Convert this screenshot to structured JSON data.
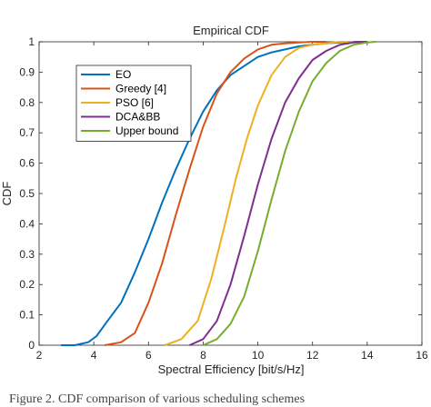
{
  "chart_data": {
    "type": "line",
    "title": "Empirical CDF",
    "xlabel": "Spectral Efficiency [bit/s/Hz]",
    "ylabel": "CDF",
    "xlim": [
      2,
      16
    ],
    "ylim": [
      0,
      1
    ],
    "xticks": [
      2,
      4,
      6,
      8,
      10,
      12,
      14,
      16
    ],
    "yticks": [
      0,
      0.1,
      0.2,
      0.3,
      0.4,
      0.5,
      0.6,
      0.7,
      0.8,
      0.9,
      1
    ],
    "grid": false,
    "legend_position": "top-left",
    "series": [
      {
        "name": "EO",
        "color": "#0072BD",
        "x": [
          2.8,
          3.3,
          3.8,
          4.1,
          4.5,
          5.0,
          5.5,
          6.0,
          6.5,
          7.0,
          7.5,
          8.0,
          8.5,
          9.0,
          9.5,
          10.0,
          10.5,
          11.0,
          11.5,
          12.0,
          12.5,
          13.0,
          13.5,
          14.0
        ],
        "y": [
          0.0,
          0.0,
          0.01,
          0.03,
          0.08,
          0.14,
          0.24,
          0.35,
          0.47,
          0.58,
          0.68,
          0.77,
          0.84,
          0.89,
          0.92,
          0.95,
          0.965,
          0.975,
          0.985,
          0.99,
          0.995,
          0.998,
          1.0,
          1.0
        ]
      },
      {
        "name": "Greedy [4]",
        "color": "#D95319",
        "x": [
          4.4,
          5.0,
          5.5,
          6.0,
          6.5,
          7.0,
          7.5,
          8.0,
          8.5,
          9.0,
          9.5,
          10.0,
          10.5,
          11.0,
          11.5,
          12.0,
          12.5
        ],
        "y": [
          0.0,
          0.01,
          0.04,
          0.14,
          0.27,
          0.43,
          0.58,
          0.72,
          0.83,
          0.9,
          0.945,
          0.975,
          0.99,
          0.995,
          0.998,
          1.0,
          1.0
        ]
      },
      {
        "name": "PSO [6]",
        "color": "#EDB120",
        "x": [
          6.6,
          7.2,
          7.8,
          8.3,
          8.8,
          9.2,
          9.6,
          10.0,
          10.5,
          11.0,
          11.5,
          12.0,
          12.5,
          13.0,
          13.5
        ],
        "y": [
          0.0,
          0.02,
          0.08,
          0.22,
          0.4,
          0.55,
          0.68,
          0.79,
          0.89,
          0.95,
          0.98,
          0.99,
          0.995,
          1.0,
          1.0
        ]
      },
      {
        "name": "DCA&BB",
        "color": "#7E2F8E",
        "x": [
          7.5,
          8.0,
          8.5,
          9.0,
          9.5,
          10.0,
          10.5,
          11.0,
          11.5,
          12.0,
          12.5,
          13.0,
          13.5,
          14.0
        ],
        "y": [
          0.0,
          0.02,
          0.08,
          0.2,
          0.36,
          0.53,
          0.68,
          0.8,
          0.88,
          0.94,
          0.97,
          0.99,
          0.998,
          1.0
        ]
      },
      {
        "name": "Upper bound",
        "color": "#77AC30",
        "x": [
          8.0,
          8.5,
          9.0,
          9.5,
          10.0,
          10.5,
          11.0,
          11.5,
          12.0,
          12.5,
          13.0,
          13.5,
          14.0,
          14.3
        ],
        "y": [
          0.0,
          0.02,
          0.07,
          0.16,
          0.31,
          0.48,
          0.64,
          0.77,
          0.87,
          0.93,
          0.97,
          0.99,
          0.998,
          1.0
        ]
      }
    ]
  },
  "caption": "Figure 2.   CDF comparison of various scheduling schemes"
}
